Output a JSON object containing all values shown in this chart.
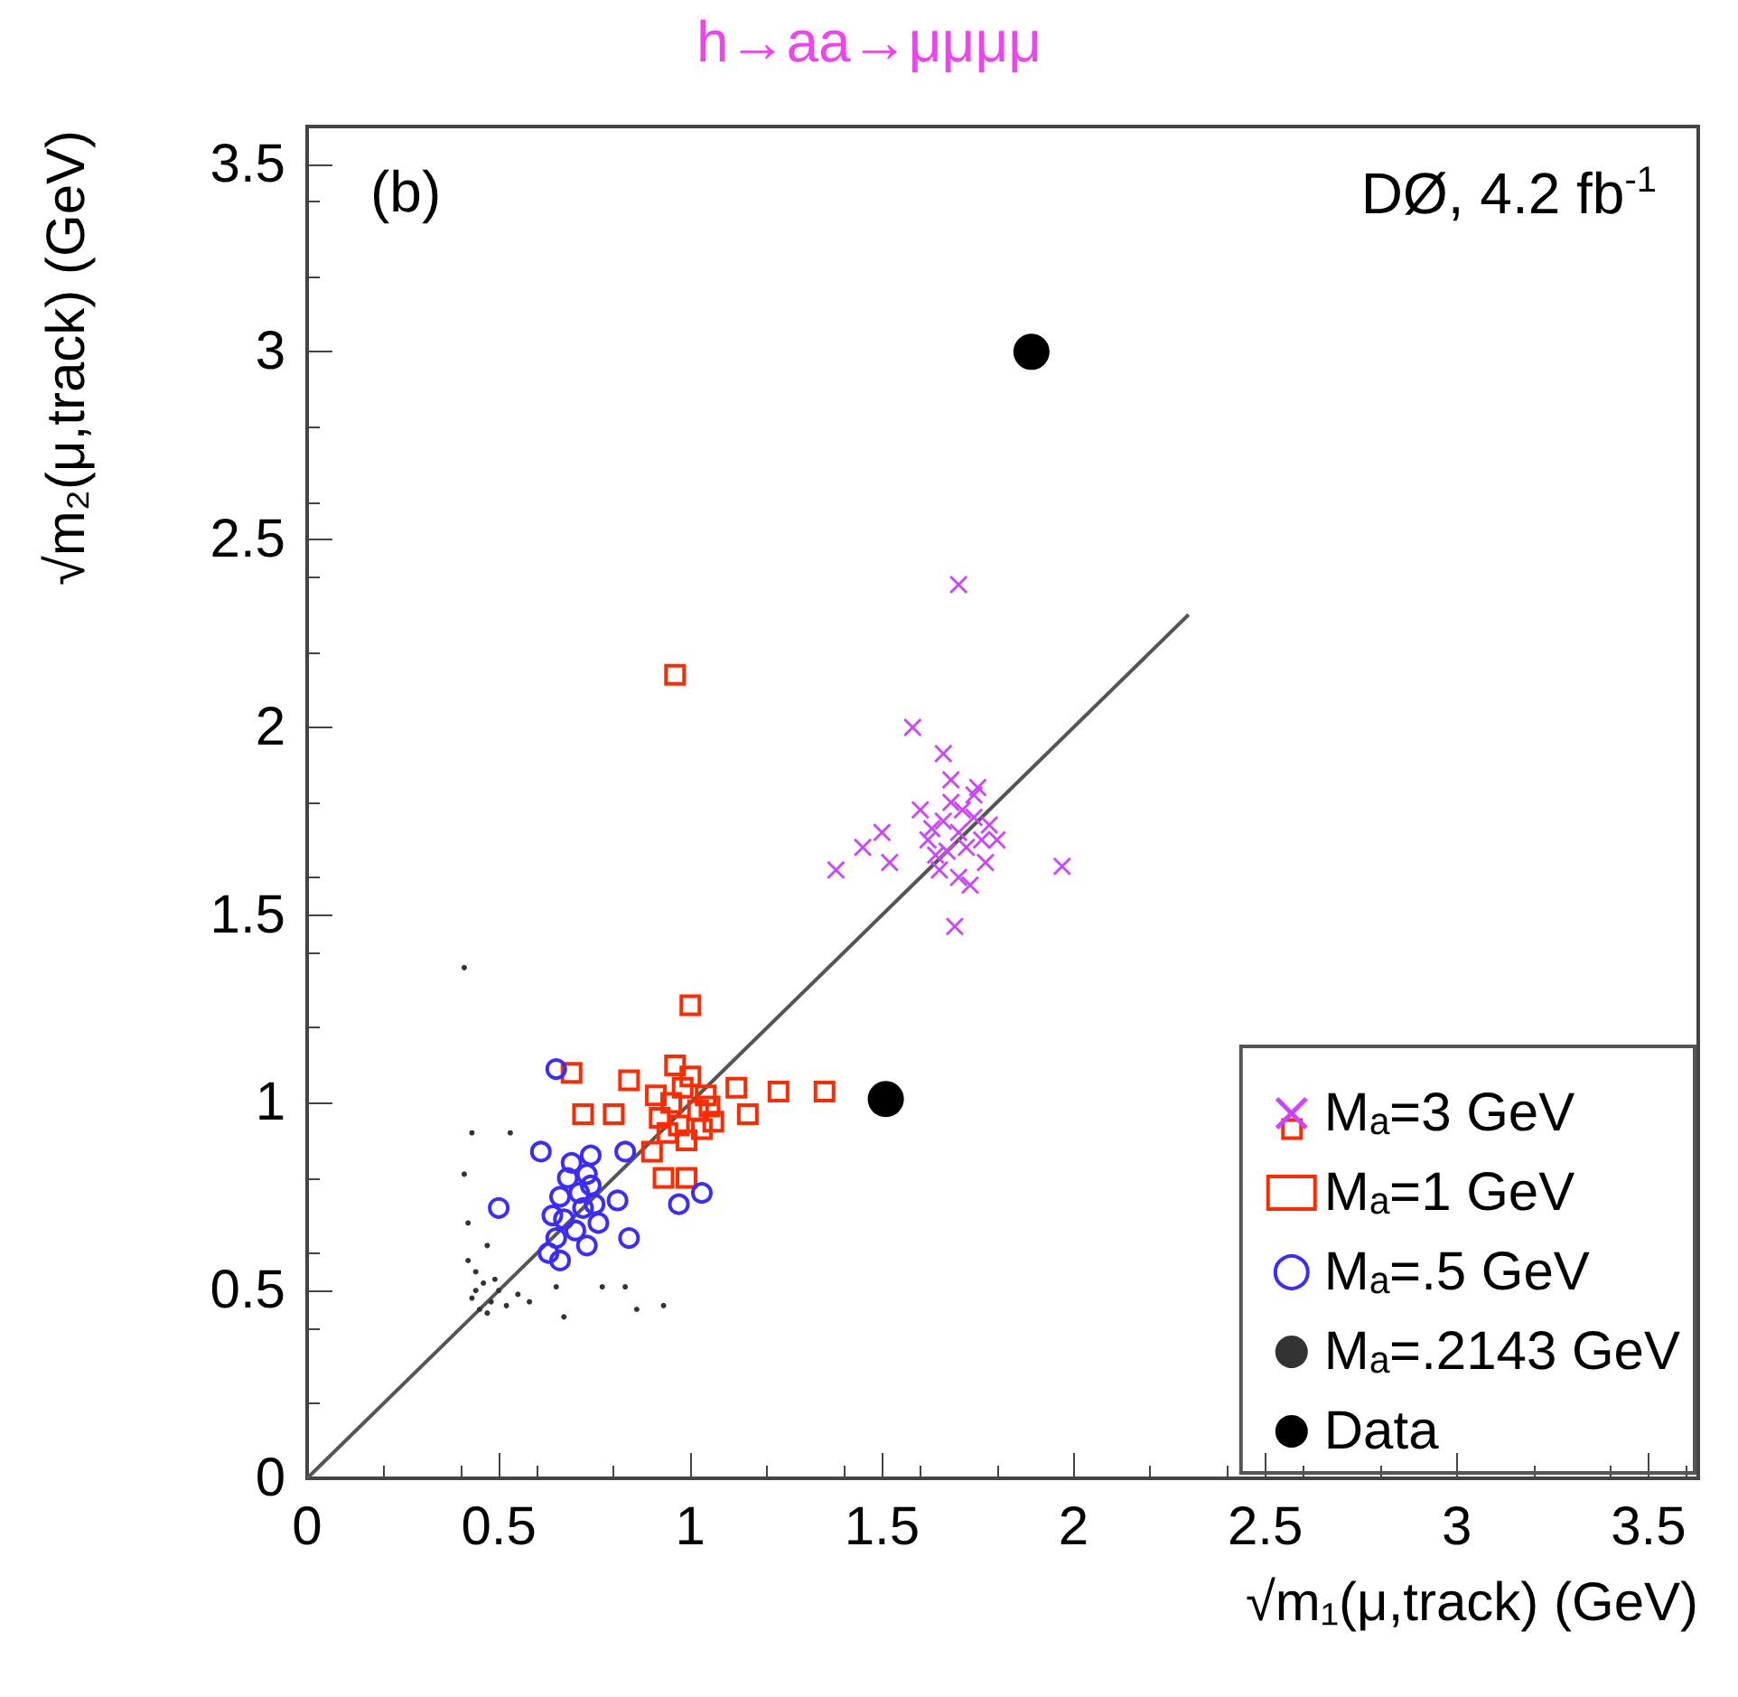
{
  "chart_data": {
    "type": "scatter",
    "title": "h→aa→μμμμ",
    "xlabel": "√m₁(μ,track) (GeV)",
    "ylabel": "√m₂(μ,track) (GeV)",
    "annotations": [
      "(b)",
      "DØ, 4.2 fb$^{-1}$"
    ],
    "xlim": [
      0,
      3.63
    ],
    "ylim": [
      0,
      3.6
    ],
    "xticks": [
      0,
      0.5,
      1,
      1.5,
      2,
      2.5,
      3,
      3.5
    ],
    "yticks": [
      0,
      0.5,
      1,
      1.5,
      2,
      2.5,
      3,
      3.5
    ],
    "grid": false,
    "legend": "bottom right",
    "series": [
      {
        "name": "Mₐ=3 GeV",
        "color": "#cc44ff",
        "marker": "cross",
        "x": [
          1.7,
          1.58,
          1.66,
          1.38,
          1.69,
          1.97,
          1.45,
          1.5,
          1.52,
          1.6,
          1.62,
          1.64,
          1.66,
          1.68,
          1.7,
          1.72,
          1.74,
          1.76,
          1.78,
          1.65,
          1.7,
          1.75,
          1.68,
          1.73,
          1.63,
          1.71,
          1.77,
          1.8,
          1.67,
          1.74
        ],
        "values": [
          2.38,
          2.0,
          1.93,
          1.62,
          1.47,
          1.63,
          1.68,
          1.72,
          1.64,
          1.78,
          1.7,
          1.66,
          1.75,
          1.8,
          1.72,
          1.68,
          1.76,
          1.7,
          1.74,
          1.62,
          1.6,
          1.84,
          1.86,
          1.58,
          1.73,
          1.78,
          1.64,
          1.7,
          1.67,
          1.82
        ]
      },
      {
        "name": "Mₐ=1 GeV",
        "color": "#ff2a00",
        "marker": "square",
        "x": [
          0.96,
          1.0,
          1.23,
          1.35,
          2.57,
          0.69,
          0.72,
          0.8,
          0.84,
          0.93,
          0.99,
          0.9,
          1.15,
          1.12,
          1.06,
          0.92,
          0.95,
          0.98,
          1.02,
          1.04,
          0.94,
          0.97,
          1.0,
          1.03,
          0.91,
          1.05,
          0.96,
          0.99
        ],
        "values": [
          2.14,
          1.26,
          1.03,
          1.03,
          0.93,
          1.08,
          0.97,
          0.97,
          1.06,
          0.8,
          0.8,
          0.87,
          0.97,
          1.04,
          0.95,
          0.96,
          1.0,
          1.04,
          0.98,
          1.02,
          0.92,
          0.94,
          1.07,
          0.93,
          1.02,
          0.99,
          1.1,
          0.9
        ]
      },
      {
        "name": "Mₐ=.5 GeV",
        "color": "#3b2bff",
        "marker": "circle",
        "x": [
          0.65,
          0.61,
          0.5,
          0.81,
          0.84,
          1.03,
          0.97,
          0.83,
          0.63,
          0.66,
          0.74,
          0.64,
          0.66,
          0.68,
          0.7,
          0.72,
          0.74,
          0.76,
          0.65,
          0.69,
          0.73,
          0.75,
          0.67,
          0.71,
          0.73
        ],
        "values": [
          1.09,
          0.87,
          0.72,
          0.74,
          0.64,
          0.76,
          0.73,
          0.87,
          0.6,
          0.58,
          0.86,
          0.7,
          0.75,
          0.8,
          0.66,
          0.72,
          0.78,
          0.68,
          0.64,
          0.84,
          0.62,
          0.73,
          0.69,
          0.76,
          0.81
        ]
      },
      {
        "name": "Mₐ=.2143 GeV",
        "color": "#333333",
        "marker": "circle",
        "x": [
          0.41,
          0.43,
          0.53,
          0.41,
          0.42,
          0.47,
          0.65,
          0.77,
          0.83,
          0.93,
          0.86,
          0.67,
          0.58,
          0.43,
          0.44,
          0.45,
          0.46,
          0.48,
          0.5,
          0.52,
          0.44,
          0.47,
          0.49,
          0.55,
          0.42
        ],
        "values": [
          1.36,
          0.92,
          0.92,
          0.81,
          0.68,
          0.62,
          0.51,
          0.51,
          0.51,
          0.46,
          0.45,
          0.43,
          0.47,
          0.48,
          0.5,
          0.45,
          0.52,
          0.47,
          0.5,
          0.46,
          0.55,
          0.44,
          0.53,
          0.49,
          0.58
        ]
      },
      {
        "name": "Data",
        "color": "#000000",
        "marker": "circle",
        "x": [
          1.89,
          1.51
        ],
        "values": [
          3.0,
          1.01
        ]
      },
      {
        "type": "line",
        "color": "#555555",
        "line_style": "solid",
        "marker": "none",
        "x": [
          0,
          2.3
        ],
        "values": [
          0,
          2.3
        ]
      }
    ]
  }
}
